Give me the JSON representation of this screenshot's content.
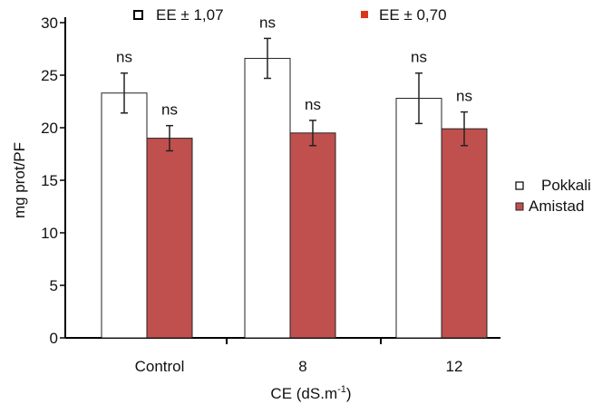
{
  "chart_data": {
    "type": "bar",
    "categories": [
      "Control",
      "8",
      "12"
    ],
    "series": [
      {
        "name": "Pokkali",
        "values": [
          23.3,
          26.6,
          22.8
        ],
        "errors": [
          1.9,
          1.9,
          2.4
        ],
        "color": "#ffffff",
        "stroke": "#222222"
      },
      {
        "name": "Amistad",
        "values": [
          19.0,
          19.5,
          19.9
        ],
        "errors": [
          1.2,
          1.2,
          1.6
        ],
        "color": "#c0504d",
        "stroke": "#222222"
      }
    ],
    "bar_labels": [
      [
        "ns",
        "ns"
      ],
      [
        "ns",
        "ns"
      ],
      [
        "ns",
        "ns"
      ]
    ],
    "ylabel": "mg prot/PF",
    "xlabel_main": "CE (dS.m",
    "xlabel_sup": "-1",
    "xlabel_end": ")",
    "ylim": [
      0,
      30
    ],
    "yticks": [
      "0",
      "5",
      "10",
      "15",
      "20",
      "25",
      "30"
    ],
    "top_legend": [
      {
        "text": "EE ± 1,07",
        "marker": "white-square"
      },
      {
        "text": "EE ± 0,70",
        "marker": "red-square"
      }
    ],
    "legend_position": "right",
    "grid": false
  }
}
